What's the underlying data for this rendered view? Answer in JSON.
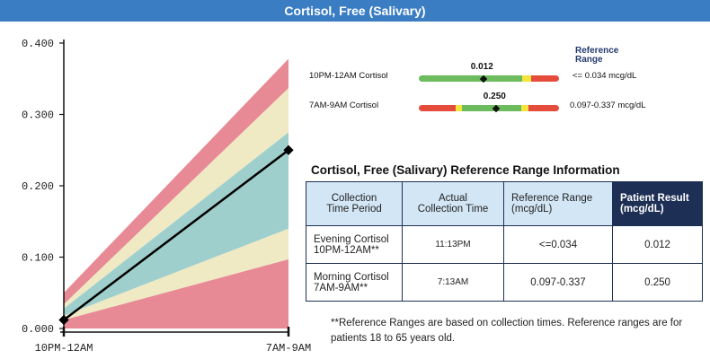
{
  "header": {
    "title": "Cortisol, Free (Salivary)"
  },
  "chart_data": {
    "type": "line",
    "categories": [
      "10PM-12AM",
      "7AM-9AM"
    ],
    "series": [
      {
        "values": [
          0.012,
          0.25
        ]
      }
    ],
    "y_ticks": [
      "0.000",
      "0.100",
      "0.200",
      "0.300",
      "0.400"
    ],
    "ylim": [
      0,
      0.4
    ],
    "bands": [
      {
        "color": "#e88a95",
        "low": [
          0.0,
          0.0
        ],
        "high": [
          0.012,
          0.097
        ]
      },
      {
        "color": "#efe9c4",
        "low": [
          0.012,
          0.097
        ],
        "high": [
          0.018,
          0.14
        ]
      },
      {
        "color": "#9fcfcd",
        "low": [
          0.018,
          0.14
        ],
        "high": [
          0.028,
          0.275
        ]
      },
      {
        "color": "#efe9c4",
        "low": [
          0.028,
          0.275
        ],
        "high": [
          0.034,
          0.337
        ]
      },
      {
        "color": "#e88a95",
        "low": [
          0.034,
          0.337
        ],
        "high": [
          0.05,
          0.378
        ]
      }
    ]
  },
  "ref_bars": {
    "heading": "Reference Range",
    "items": [
      {
        "label": "10PM-12AM Cortisol",
        "value_label": "0.012",
        "range": "<= 0.034 mcg/dL",
        "marker_pos": 0.46,
        "segments": [
          {
            "color": "#6cbb5c",
            "w": 0.74
          },
          {
            "color": "#f2e53c",
            "w": 0.06
          },
          {
            "color": "#e54c3c",
            "w": 0.2
          }
        ]
      },
      {
        "label": "7AM-9AM Cortisol",
        "value_label": "0.250",
        "range": "0.097-0.337 mcg/dL",
        "marker_pos": 0.55,
        "segments": [
          {
            "color": "#e54c3c",
            "w": 0.26
          },
          {
            "color": "#f2e53c",
            "w": 0.05
          },
          {
            "color": "#6cbb5c",
            "w": 0.42
          },
          {
            "color": "#f2e53c",
            "w": 0.05
          },
          {
            "color": "#e54c3c",
            "w": 0.22
          }
        ]
      }
    ]
  },
  "table": {
    "title": "Cortisol, Free (Salivary) Reference Range Information",
    "headers": [
      "Collection\nTime Period",
      "Actual\nCollection Time",
      "Reference Range\n(mcg/dL)",
      "Patient Result\n(mcg/dL)"
    ],
    "rows": [
      [
        "Evening Cortisol\n10PM-12AM**",
        "11:13PM",
        "<=0.034",
        "0.012"
      ],
      [
        "Morning Cortisol\n7AM-9AM**",
        "7:13AM",
        "0.097-0.337",
        "0.250"
      ]
    ],
    "footnote": "**Reference Ranges are based on collection times. Reference ranges are for patients 18 to 65 years old."
  }
}
